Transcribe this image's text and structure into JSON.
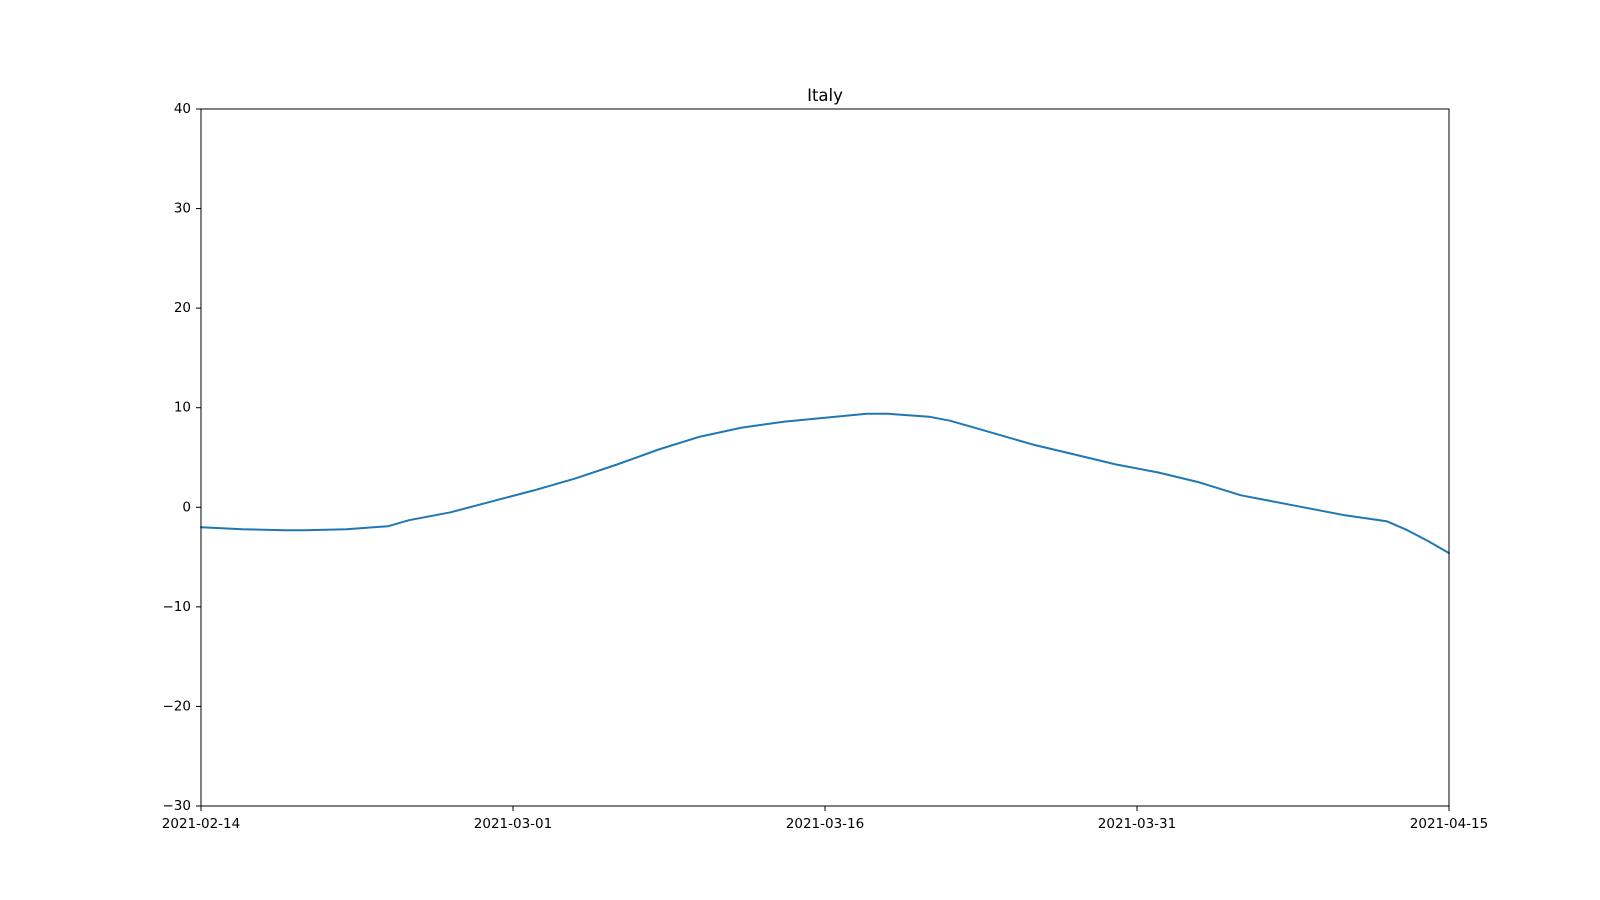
{
  "chart_data": {
    "type": "line",
    "title": "Italy",
    "xlabel": "",
    "ylabel": "",
    "x_ticks": [
      "2021-02-14",
      "2021-03-01",
      "2021-03-16",
      "2021-03-31",
      "2021-04-15"
    ],
    "y_ticks": [
      40,
      30,
      20,
      10,
      0,
      -10,
      -20,
      -30
    ],
    "y_tick_labels": [
      "40",
      "30",
      "20",
      "10",
      "0",
      "−10",
      "−20",
      "−30"
    ],
    "xlim": [
      "2021-02-14",
      "2021-04-15"
    ],
    "ylim": [
      -30,
      40
    ],
    "grid": false,
    "series": [
      {
        "color": "#1f77b4",
        "x": [
          "2021-02-14",
          "2021-02-16",
          "2021-02-18",
          "2021-02-19",
          "2021-02-21",
          "2021-02-23",
          "2021-02-24",
          "2021-02-26",
          "2021-02-28",
          "2021-03-02",
          "2021-03-04",
          "2021-03-06",
          "2021-03-08",
          "2021-03-10",
          "2021-03-12",
          "2021-03-14",
          "2021-03-16",
          "2021-03-18",
          "2021-03-19",
          "2021-03-21",
          "2021-03-22",
          "2021-03-23",
          "2021-03-25",
          "2021-03-26",
          "2021-03-28",
          "2021-03-30",
          "2021-04-01",
          "2021-04-03",
          "2021-04-05",
          "2021-04-08",
          "2021-04-10",
          "2021-04-12",
          "2021-04-13",
          "2021-04-14",
          "2021-04-15"
        ],
        "y": [
          -2.0,
          -2.2,
          -2.3,
          -2.3,
          -2.2,
          -1.9,
          -1.3,
          -0.5,
          0.6,
          1.7,
          2.9,
          4.3,
          5.8,
          7.1,
          8.0,
          8.6,
          9.0,
          9.4,
          9.4,
          9.1,
          8.7,
          8.1,
          6.9,
          6.3,
          5.3,
          4.3,
          3.5,
          2.5,
          1.2,
          0.0,
          -0.8,
          -1.4,
          -2.3,
          -3.4,
          -4.6
        ]
      }
    ]
  }
}
